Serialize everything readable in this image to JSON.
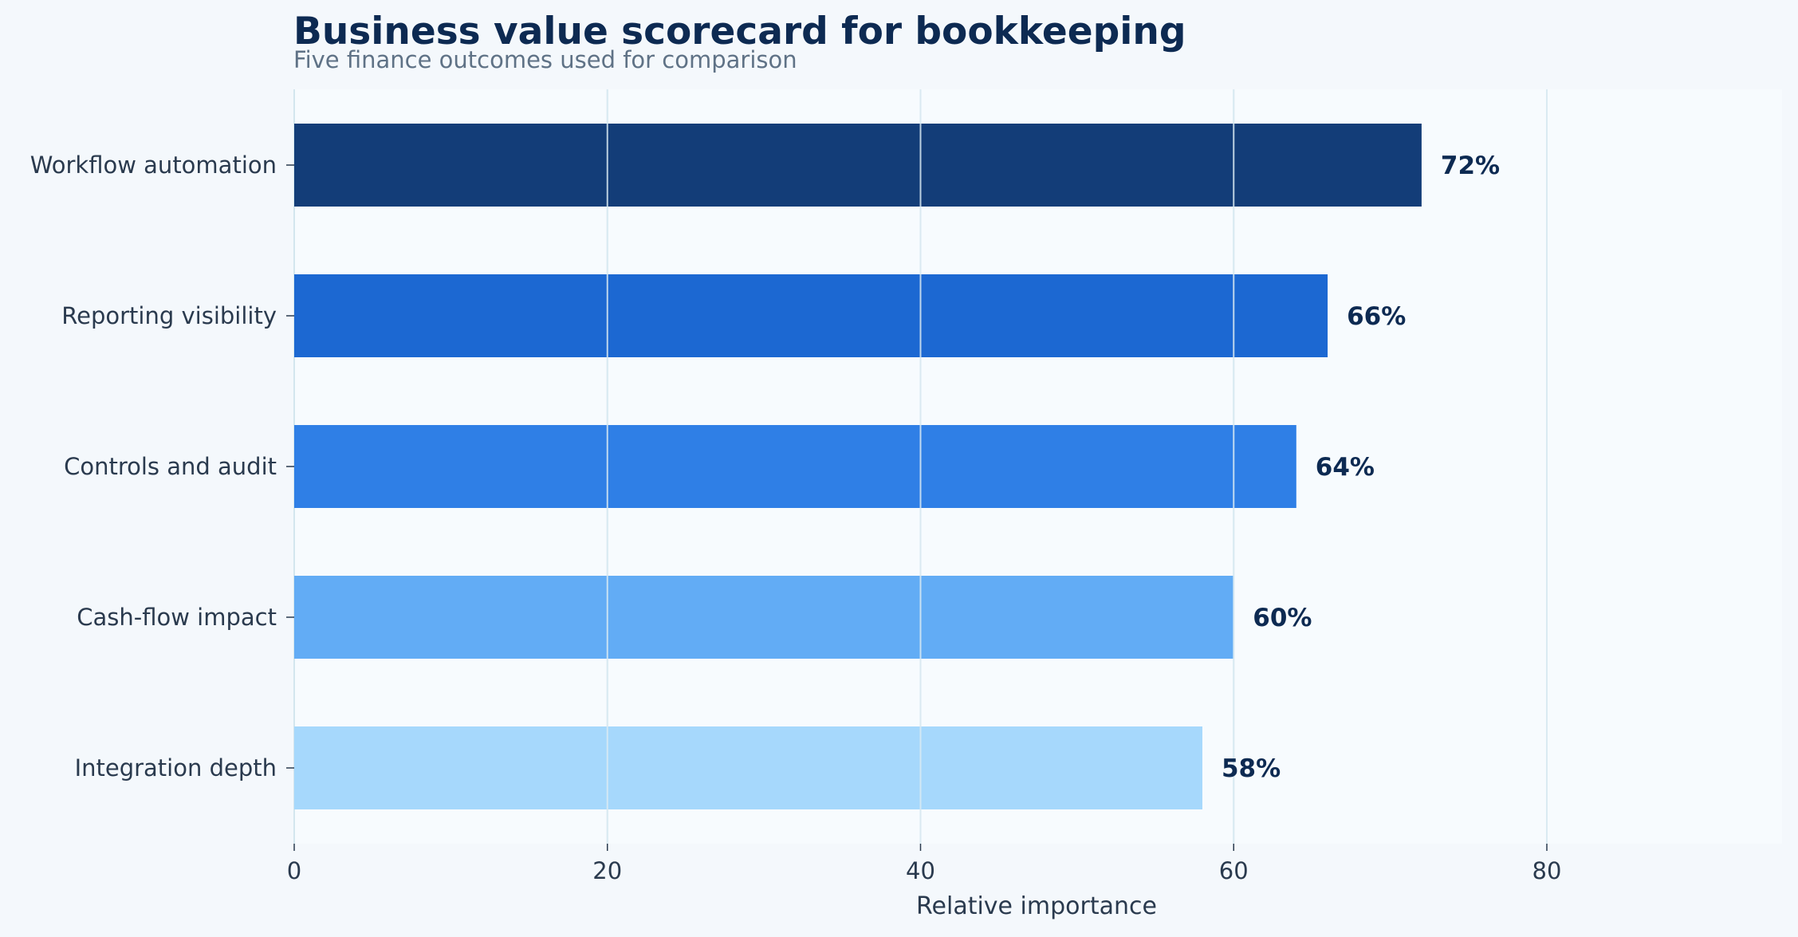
{
  "chart_data": {
    "type": "bar",
    "orientation": "horizontal",
    "title": "Business value scorecard for bookkeeping",
    "subtitle": "Five finance outcomes used for comparison",
    "xlabel": "Relative importance",
    "ylabel": "",
    "xlim": [
      0,
      95
    ],
    "xticks": [
      0,
      20,
      40,
      60,
      80
    ],
    "grid": "vertical",
    "categories": [
      "Workflow automation",
      "Reporting visibility",
      "Controls and audit",
      "Cash-flow impact",
      "Integration depth"
    ],
    "values": [
      72,
      66,
      64,
      60,
      58
    ],
    "value_labels": [
      "72%",
      "66%",
      "64%",
      "60%",
      "58%"
    ],
    "colors": [
      "#133d78",
      "#1c68d2",
      "#2f7fe6",
      "#62acf5",
      "#a6d8fc"
    ]
  }
}
